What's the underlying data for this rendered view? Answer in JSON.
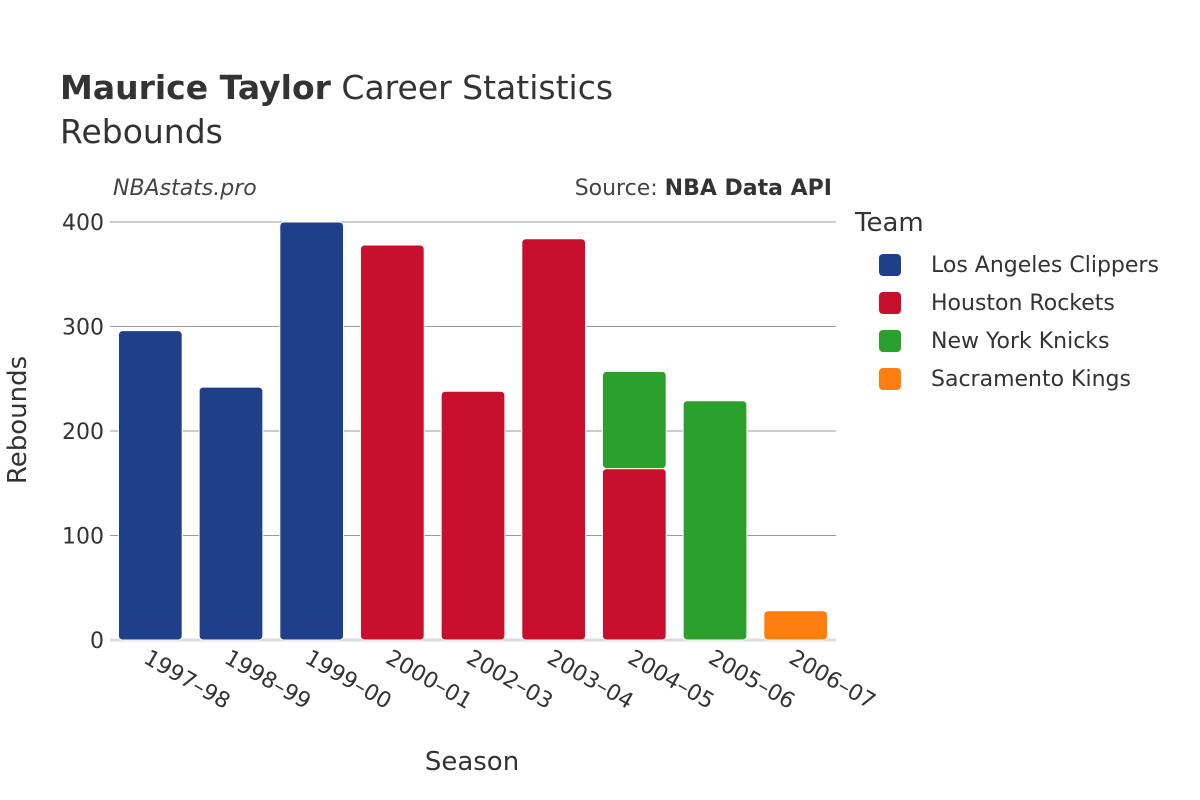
{
  "header": {
    "title_bold": "Maurice Taylor",
    "title_rest": "Career Statistics",
    "subtitle": "Rebounds"
  },
  "watermark": "NBAstats.pro",
  "source": {
    "prefix": "Source: ",
    "name": "NBA Data API"
  },
  "legend": {
    "title": "Team",
    "items": [
      {
        "label": "Los Angeles Clippers",
        "color": "#1f4088"
      },
      {
        "label": "Houston Rockets",
        "color": "#c8102e"
      },
      {
        "label": "New York Knicks",
        "color": "#2ca02c"
      },
      {
        "label": "Sacramento Kings",
        "color": "#ff7f0e"
      }
    ]
  },
  "chart_data": {
    "type": "bar",
    "stacked": true,
    "xlabel": "Season",
    "ylabel": "Rebounds",
    "ylim": [
      0,
      400
    ],
    "yticks": [
      0,
      100,
      200,
      300,
      400
    ],
    "grid": true,
    "legend_position": "right",
    "categories": [
      "1997–98",
      "1998–99",
      "1999–00",
      "2000–01",
      "2002–03",
      "2003–04",
      "2004–05",
      "2005–06",
      "2006–07"
    ],
    "series": [
      {
        "name": "Los Angeles Clippers",
        "color": "#1f4088",
        "values": [
          296,
          242,
          400,
          0,
          0,
          0,
          0,
          0,
          0
        ]
      },
      {
        "name": "Houston Rockets",
        "color": "#c8102e",
        "values": [
          0,
          0,
          0,
          378,
          238,
          384,
          164,
          0,
          0
        ]
      },
      {
        "name": "New York Knicks",
        "color": "#2ca02c",
        "values": [
          0,
          0,
          0,
          0,
          0,
          0,
          93,
          229,
          0
        ]
      },
      {
        "name": "Sacramento Kings",
        "color": "#ff7f0e",
        "values": [
          0,
          0,
          0,
          0,
          0,
          0,
          0,
          0,
          28
        ]
      }
    ]
  }
}
